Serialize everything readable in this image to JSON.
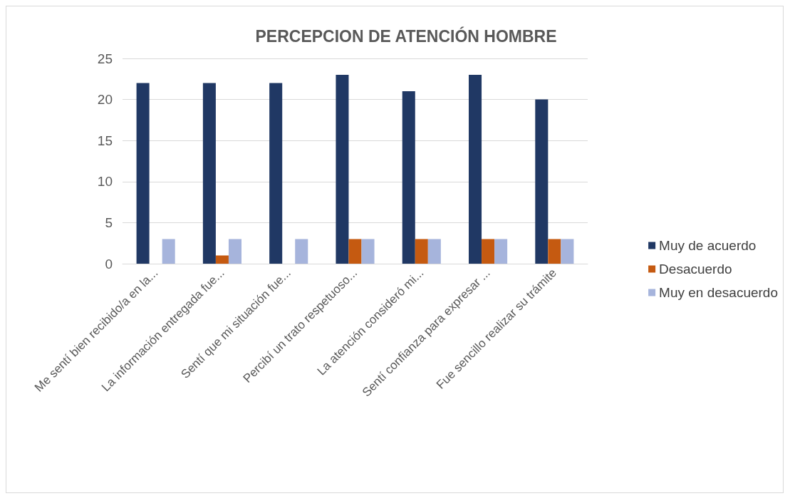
{
  "chart_data": {
    "type": "bar",
    "title": "PERCEPCION DE ATENCIÓN HOMBRE",
    "categories": [
      "Me sentí bien recibido/a en la...",
      "La información entregada fue...",
      "Sentí que mi situación fue...",
      "Percibí un trato respetuoso...",
      "La atención consideró mi...",
      "Sentí confianza para expresar ...",
      "Fue sencillo realizar su trámite"
    ],
    "series": [
      {
        "name": "Muy de acuerdo",
        "color": "#203864",
        "values": [
          22,
          22,
          22,
          23,
          21,
          23,
          20
        ]
      },
      {
        "name": "Desacuerdo",
        "color": "#c55a11",
        "values": [
          0,
          1,
          0,
          3,
          3,
          3,
          3
        ]
      },
      {
        "name": "Muy en desacuerdo",
        "color": "#a6b4dc",
        "values": [
          3,
          3,
          3,
          3,
          3,
          3,
          3
        ]
      }
    ],
    "ylim": [
      0,
      25
    ],
    "yticks": [
      0,
      5,
      10,
      15,
      20,
      25
    ],
    "grid": "y",
    "legend": "right"
  }
}
